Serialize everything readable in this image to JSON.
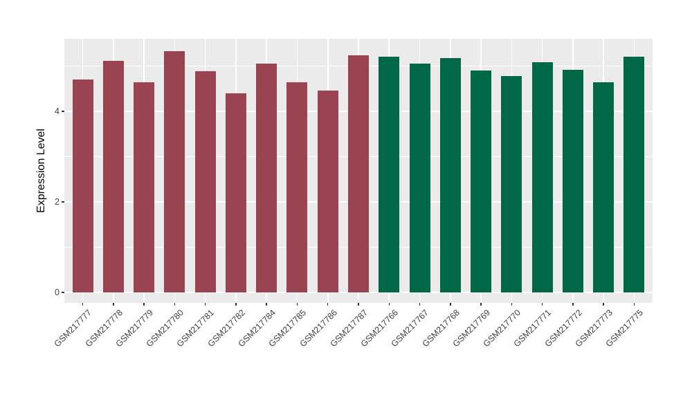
{
  "figure": {
    "background_color": "#FFFFFF",
    "panel_background_color": "#EBEBEB",
    "gridline_color": "#FFFFFF",
    "axis_text_color": "#404040",
    "tick_mark_color": "#333333"
  },
  "chart_data": {
    "type": "bar",
    "title": "",
    "xlabel": "",
    "ylabel": "Expression Level",
    "ylim": [
      -0.23,
      5.6
    ],
    "yticks": [
      0,
      2,
      4
    ],
    "ytick_labels": [
      "0",
      "2",
      "4"
    ],
    "minor_yticks": [
      1,
      3,
      5
    ],
    "grid": "on",
    "legend_position": "none",
    "categories": [
      "GSM217777",
      "GSM217778",
      "GSM217779",
      "GSM217780",
      "GSM217781",
      "GSM217782",
      "GSM217784",
      "GSM217785",
      "GSM217786",
      "GSM217787",
      "GSM217766",
      "GSM217767",
      "GSM217768",
      "GSM217769",
      "GSM217770",
      "GSM217771",
      "GSM217772",
      "GSM217773",
      "GSM217775"
    ],
    "values": [
      4.7,
      5.11,
      4.64,
      5.33,
      4.88,
      4.4,
      5.06,
      4.64,
      4.46,
      5.23,
      5.21,
      5.06,
      5.17,
      4.9,
      4.78,
      5.09,
      4.92,
      4.64,
      5.2
    ],
    "groups": [
      "group1",
      "group1",
      "group1",
      "group1",
      "group1",
      "group1",
      "group1",
      "group1",
      "group1",
      "group1",
      "group2",
      "group2",
      "group2",
      "group2",
      "group2",
      "group2",
      "group2",
      "group2",
      "group2"
    ],
    "group_colors": {
      "group1": "#9A4351",
      "group2": "#006847"
    }
  }
}
